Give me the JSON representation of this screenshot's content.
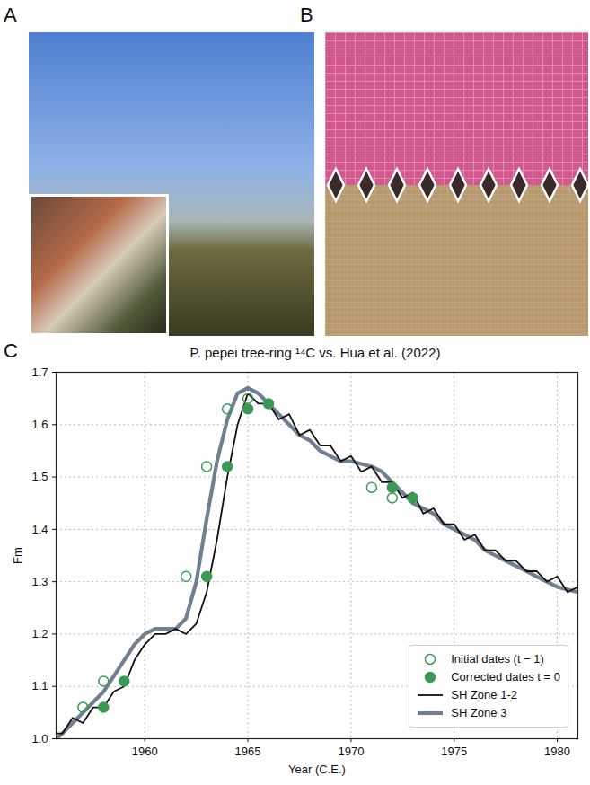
{
  "panel_labels": [
    "A",
    "B",
    "C"
  ],
  "chart_data": {
    "type": "line",
    "title": "P. pepei tree-ring ¹⁴C vs. Hua et al. (2022)",
    "x_label": "Year (C.E.)",
    "y_label": "Fm",
    "xlim": [
      1955.7,
      1981
    ],
    "xticks": [
      1960,
      1965,
      1970,
      1975,
      1980
    ],
    "ylim": [
      1.0,
      1.7
    ],
    "yticks": [
      {
        "value": 1.0,
        "label": "1.0"
      },
      1.1,
      1.2,
      1.3,
      1.4,
      1.5,
      1.6,
      1.7
    ],
    "grid": true,
    "legend": "lower right",
    "series": [
      {
        "name": "Initial dates (t − 1)",
        "type": "scatter",
        "marker": "open_circle",
        "color": "#3a9a55",
        "x": [
          1957,
          1958,
          1962,
          1963,
          1964,
          1965,
          1971,
          1972
        ],
        "values": [
          1.06,
          1.11,
          1.31,
          1.52,
          1.63,
          1.65,
          1.48,
          1.46
        ]
      },
      {
        "name": "Corrected dates t = 0",
        "type": "scatter",
        "marker": "circle",
        "color": "#3a9a55",
        "x": [
          1958,
          1959,
          1963,
          1964,
          1965,
          1966,
          1972,
          1973
        ],
        "values": [
          1.06,
          1.11,
          1.31,
          1.52,
          1.63,
          1.64,
          1.48,
          1.46
        ]
      },
      {
        "name": "SH Zone 1-2",
        "type": "line",
        "color": "#111111",
        "x": [
          1955.7,
          1956,
          1956.5,
          1957,
          1957.5,
          1958,
          1958.5,
          1959,
          1959.5,
          1960,
          1960.5,
          1961,
          1961.5,
          1962,
          1962.5,
          1963,
          1963.5,
          1964,
          1964.5,
          1965,
          1965.5,
          1966,
          1966.5,
          1967,
          1967.5,
          1968,
          1968.5,
          1969,
          1969.5,
          1970,
          1970.5,
          1971,
          1971.5,
          1972,
          1972.5,
          1973,
          1973.5,
          1974,
          1974.5,
          1975,
          1975.5,
          1976,
          1976.5,
          1977,
          1977.5,
          1978,
          1978.5,
          1979,
          1979.5,
          1980,
          1980.5,
          1981
        ],
        "values": [
          1.01,
          1.01,
          1.04,
          1.03,
          1.06,
          1.06,
          1.09,
          1.1,
          1.15,
          1.18,
          1.2,
          1.2,
          1.21,
          1.2,
          1.22,
          1.28,
          1.38,
          1.5,
          1.6,
          1.66,
          1.64,
          1.64,
          1.61,
          1.62,
          1.58,
          1.59,
          1.56,
          1.56,
          1.53,
          1.54,
          1.51,
          1.52,
          1.49,
          1.49,
          1.46,
          1.47,
          1.43,
          1.44,
          1.41,
          1.41,
          1.38,
          1.39,
          1.36,
          1.36,
          1.34,
          1.34,
          1.32,
          1.32,
          1.3,
          1.31,
          1.28,
          1.29
        ]
      },
      {
        "name": "SH Zone 3",
        "type": "line",
        "color": "#708090",
        "x": [
          1955.7,
          1956,
          1956.5,
          1957,
          1957.5,
          1958,
          1958.5,
          1959,
          1959.5,
          1960,
          1960.5,
          1961,
          1961.5,
          1962,
          1962.5,
          1963,
          1963.5,
          1964,
          1964.5,
          1965,
          1965.5,
          1966,
          1966.5,
          1967,
          1967.5,
          1968,
          1968.5,
          1969,
          1969.5,
          1970,
          1970.5,
          1971,
          1971.5,
          1972,
          1972.5,
          1973,
          1973.5,
          1974,
          1974.5,
          1975,
          1975.5,
          1976,
          1976.5,
          1977,
          1977.5,
          1978,
          1978.5,
          1979,
          1979.5,
          1980,
          1980.5,
          1981
        ],
        "values": [
          1.0,
          1.01,
          1.03,
          1.05,
          1.07,
          1.09,
          1.12,
          1.15,
          1.18,
          1.2,
          1.21,
          1.21,
          1.21,
          1.23,
          1.3,
          1.42,
          1.53,
          1.61,
          1.66,
          1.67,
          1.66,
          1.64,
          1.62,
          1.6,
          1.58,
          1.57,
          1.55,
          1.54,
          1.53,
          1.53,
          1.525,
          1.52,
          1.51,
          1.49,
          1.47,
          1.45,
          1.44,
          1.43,
          1.41,
          1.4,
          1.39,
          1.38,
          1.36,
          1.35,
          1.34,
          1.33,
          1.32,
          1.31,
          1.3,
          1.29,
          1.285,
          1.28
        ]
      }
    ]
  }
}
